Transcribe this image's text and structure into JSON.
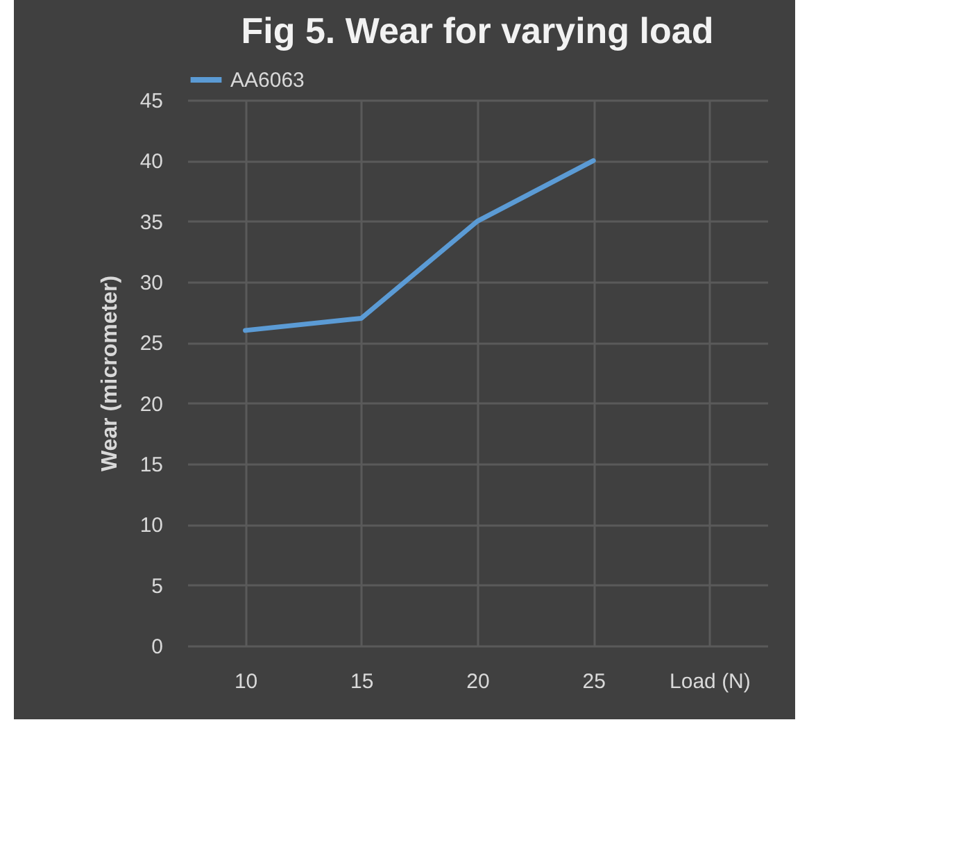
{
  "chart_data": {
    "type": "line",
    "title": "Fig 5.\nWear for varying load",
    "ylabel": "Wear (micrometer)",
    "categories": [
      "10",
      "15",
      "20",
      "25",
      "Load (N)"
    ],
    "series": [
      {
        "name": "AA6063",
        "color": "#5b9bd5",
        "values": [
          26,
          27,
          35,
          40,
          null
        ]
      }
    ],
    "ylim": [
      0,
      45
    ],
    "yticks": [
      0,
      5,
      10,
      15,
      20,
      25,
      30,
      35,
      40,
      45
    ],
    "grid": true,
    "legend": "top",
    "marker": "none",
    "line_style": "solid"
  }
}
